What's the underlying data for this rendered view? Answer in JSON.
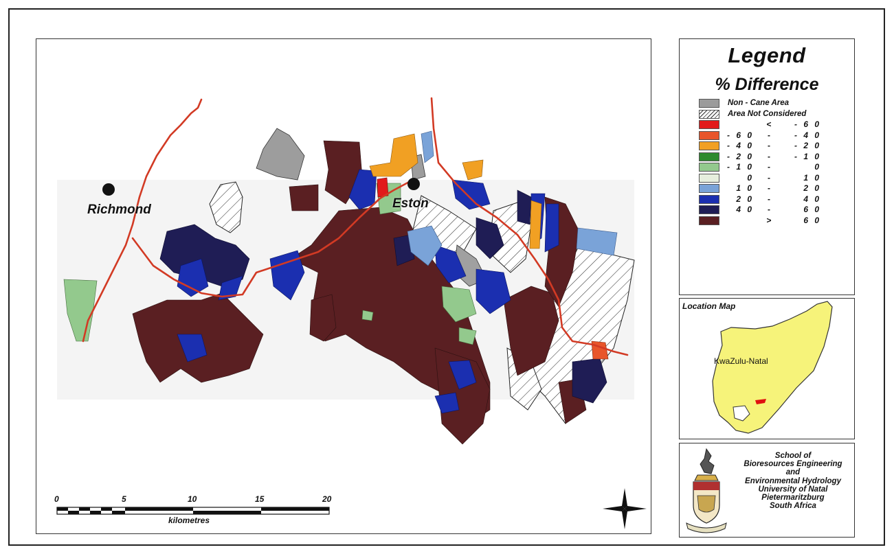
{
  "map": {
    "towns": [
      {
        "name": "Richmond"
      },
      {
        "name": "Eston"
      }
    ]
  },
  "scale_bar": {
    "ticks": [
      "0",
      "5",
      "10",
      "15",
      "20"
    ],
    "unit": "kilometres"
  },
  "legend": {
    "title": "Legend",
    "subtitle": "% Difference",
    "items": [
      {
        "label": "Non - Cane Area",
        "color": "#9b9b9b"
      },
      {
        "label": "Area Not Considered",
        "color": "hatch"
      },
      {
        "lo": "",
        "sep": "<",
        "hi": "- 6 0",
        "color": "#e21b1b"
      },
      {
        "lo": "- 6 0",
        "sep": "-",
        "hi": "- 4 0",
        "color": "#e8552a"
      },
      {
        "lo": "- 4 0",
        "sep": "-",
        "hi": "- 2 0",
        "color": "#f1a023"
      },
      {
        "lo": "- 2 0",
        "sep": "-",
        "hi": "- 1 0",
        "color": "#2e8a2e"
      },
      {
        "lo": "- 1 0",
        "sep": "-",
        "hi": "0",
        "color": "#93c98d"
      },
      {
        "lo": "0",
        "sep": "-",
        "hi": "1 0",
        "color": "#e6eedd"
      },
      {
        "lo": "1 0",
        "sep": "-",
        "hi": "2 0",
        "color": "#7aa3d8"
      },
      {
        "lo": "2 0",
        "sep": "-",
        "hi": "4 0",
        "color": "#1b2fb0"
      },
      {
        "lo": "4 0",
        "sep": "-",
        "hi": "6 0",
        "color": "#1f1d55"
      },
      {
        "lo": "",
        "sep": ">",
        "hi": "6 0",
        "color": "#5a1f22"
      }
    ]
  },
  "location_map": {
    "title": "Location Map",
    "province_label": "KwaZulu-Natal",
    "fill_color": "#f6f37a",
    "highlight_color": "#e01010"
  },
  "institution": {
    "lines": [
      "School of",
      "Bioresources Engineering",
      "and",
      "Environmental Hydrology",
      "University of Natal",
      "Pietermaritzburg",
      "South Africa"
    ]
  },
  "colors": {
    "road": "#d23a24"
  }
}
